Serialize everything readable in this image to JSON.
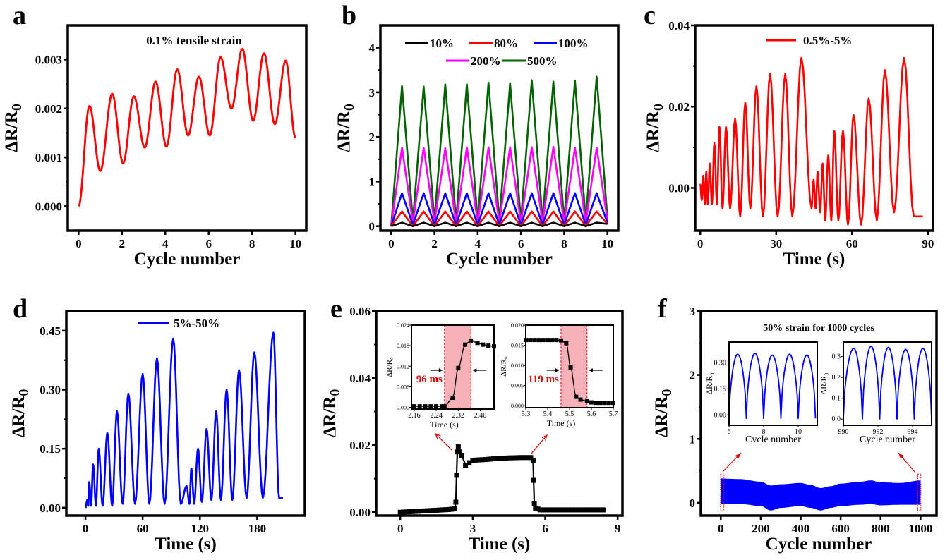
{
  "chart_data": [
    {
      "id": "a",
      "panel_label": "a",
      "type": "line",
      "title": "",
      "annotation": "0.1% tensile strain",
      "xlabel": "Cycle number",
      "ylabel": "ΔR/R0",
      "xlim": [
        -0.5,
        10.5
      ],
      "ylim": [
        -0.0005,
        0.0037
      ],
      "xticks": [
        0,
        2,
        4,
        6,
        8,
        10
      ],
      "xtick_labels": [
        "0",
        "2",
        "4",
        "6",
        "8",
        "10"
      ],
      "yticks": [
        0.0,
        0.001,
        0.002,
        0.003
      ],
      "ytick_labels": [
        "0.000",
        "0.001",
        "0.002",
        "0.003"
      ],
      "legend": null,
      "series": [
        {
          "name": "0.1% tensile strain",
          "color": "#ff0000",
          "x": [
            0,
            0.5,
            1.0,
            1.55,
            2.05,
            2.55,
            3.05,
            3.55,
            4.05,
            4.55,
            5.05,
            5.55,
            6.05,
            6.55,
            7.05,
            7.55,
            8.05,
            8.55,
            9.05,
            9.55,
            10.0
          ],
          "y": [
            0.0,
            0.00205,
            0.00072,
            0.0023,
            0.00088,
            0.00225,
            0.0012,
            0.00255,
            0.00122,
            0.0028,
            0.00145,
            0.00265,
            0.00145,
            0.00305,
            0.002,
            0.00322,
            0.00175,
            0.00313,
            0.00168,
            0.00298,
            0.0014
          ]
        }
      ]
    },
    {
      "id": "b",
      "panel_label": "b",
      "type": "line",
      "title": "",
      "xlabel": "Cycle number",
      "ylabel": "ΔR/R0",
      "xlim": [
        -0.5,
        10.5
      ],
      "ylim": [
        -0.1,
        4.5
      ],
      "xticks": [
        0,
        2,
        4,
        6,
        8,
        10
      ],
      "xtick_labels": [
        "0",
        "2",
        "4",
        "6",
        "8",
        "10"
      ],
      "yticks": [
        0,
        1,
        2,
        3,
        4
      ],
      "ytick_labels": [
        "0",
        "1",
        "2",
        "3",
        "4"
      ],
      "legend": {
        "placement": "top-center",
        "columns": 3
      },
      "cycles": 10,
      "series": [
        {
          "name": "10%",
          "color": "#000000",
          "peaks": [
            0.08,
            0.08,
            0.08,
            0.08,
            0.08,
            0.08,
            0.08,
            0.08,
            0.08,
            0.08
          ],
          "valley": 0.0
        },
        {
          "name": "80%",
          "color": "#ff0000",
          "peaks": [
            0.33,
            0.33,
            0.33,
            0.33,
            0.33,
            0.33,
            0.33,
            0.33,
            0.33,
            0.33
          ],
          "valley": 0.0
        },
        {
          "name": "100%",
          "color": "#0000ff",
          "peaks": [
            0.74,
            0.74,
            0.74,
            0.74,
            0.74,
            0.74,
            0.74,
            0.74,
            0.74,
            0.74
          ],
          "valley": 0.03
        },
        {
          "name": "200%",
          "color": "#ff00ff",
          "peaks": [
            1.76,
            1.76,
            1.75,
            1.77,
            1.77,
            1.77,
            1.77,
            1.78,
            1.76,
            1.76
          ],
          "valley": 0.08
        },
        {
          "name": "500%",
          "color": "#006400",
          "peaks": [
            3.14,
            3.13,
            3.18,
            3.18,
            3.22,
            3.2,
            3.27,
            3.24,
            3.26,
            3.35
          ],
          "valley": 0.12
        }
      ]
    },
    {
      "id": "c",
      "panel_label": "c",
      "type": "line",
      "title": "",
      "xlabel": "Time (s)",
      "ylabel": "ΔR/R0",
      "xlim": [
        -2,
        92
      ],
      "ylim": [
        -0.0105,
        0.04
      ],
      "xticks": [
        0,
        30,
        60,
        90
      ],
      "xtick_labels": [
        "0",
        "30",
        "60",
        "90"
      ],
      "yticks": [
        0.0,
        0.02,
        0.04
      ],
      "ytick_labels": [
        "0.00",
        "0.02",
        "0.04"
      ],
      "legend": {
        "placement": "top-center"
      },
      "series": [
        {
          "name": "0.5%-5%",
          "color": "#ff0000",
          "x": [
            0,
            0.6,
            1.2,
            1.8,
            2.4,
            3.0,
            3.8,
            4.6,
            5.6,
            6.6,
            7.6,
            8.8,
            10.2,
            11.8,
            13.8,
            15.8,
            17.8,
            19.8,
            22.2,
            24.8,
            27.6,
            30.6,
            33.6,
            36.4,
            40.0,
            44.0,
            44.8,
            45.6,
            46.4,
            47.4,
            48.4,
            49.4,
            50.6,
            51.8,
            53.0,
            54.6,
            56.4,
            58.4,
            60.6,
            63.6,
            66.6,
            69.8,
            73.0,
            76.6,
            80.6,
            84.4,
            88.0
          ],
          "y": [
            0.001,
            -0.003,
            0.003,
            -0.004,
            0.004,
            -0.004,
            0.006,
            -0.004,
            0.011,
            -0.004,
            0.015,
            -0.005,
            0.015,
            -0.005,
            0.017,
            -0.007,
            0.021,
            -0.005,
            0.025,
            -0.007,
            0.028,
            -0.007,
            0.028,
            -0.007,
            0.032,
            -0.005,
            0.002,
            -0.005,
            0.004,
            -0.006,
            0.006,
            -0.008,
            0.008,
            -0.008,
            0.014,
            -0.008,
            0.014,
            -0.009,
            0.018,
            -0.009,
            0.022,
            -0.008,
            0.029,
            -0.006,
            0.032,
            -0.007,
            -0.007
          ]
        }
      ]
    },
    {
      "id": "d",
      "panel_label": "d",
      "type": "line",
      "title": "",
      "xlabel": "Time (s)",
      "ylabel": "ΔR/R0",
      "xlim": [
        -20,
        230
      ],
      "ylim": [
        -0.02,
        0.5
      ],
      "xticks": [
        0,
        60,
        120,
        180
      ],
      "xtick_labels": [
        "0",
        "60",
        "120",
        "180"
      ],
      "yticks": [
        0.0,
        0.15,
        0.3,
        0.45
      ],
      "ytick_labels": [
        "0.00",
        "0.15",
        "0.30",
        "0.45"
      ],
      "legend": {
        "placement": "top-center"
      },
      "series": [
        {
          "name": "5%-50%",
          "color": "#0000ff",
          "peaks_x": [
            2,
            4,
            8,
            14,
            23,
            33,
            45,
            60,
            75,
            92,
            106,
            111,
            118,
            127,
            137,
            148,
            161,
            177,
            197
          ],
          "peaks_y": [
            0.02,
            0.065,
            0.11,
            0.15,
            0.19,
            0.245,
            0.29,
            0.34,
            0.38,
            0.43,
            0.055,
            0.1,
            0.15,
            0.2,
            0.245,
            0.3,
            0.35,
            0.395,
            0.445
          ],
          "valleys_x": [
            0,
            3,
            6,
            11,
            18,
            28,
            39,
            52,
            67,
            83,
            100,
            109,
            114,
            122,
            132,
            142,
            154,
            169,
            186,
            203,
            207
          ],
          "valleys_y": [
            0.0,
            0.005,
            0.005,
            0.005,
            0.005,
            0.005,
            0.01,
            0.01,
            0.01,
            0.01,
            0.01,
            0.01,
            0.01,
            0.015,
            0.02,
            0.02,
            0.02,
            0.025,
            0.025,
            0.025,
            0.025
          ]
        }
      ]
    },
    {
      "id": "e",
      "panel_label": "e",
      "type": "line",
      "title": "",
      "xlabel": "Time (s)",
      "ylabel": "ΔR/R0",
      "xlim": [
        -1,
        9.2
      ],
      "ylim": [
        -0.001,
        0.06
      ],
      "xticks": [
        0,
        3,
        6,
        9
      ],
      "xtick_labels": [
        "0",
        "3",
        "6",
        "9"
      ],
      "yticks": [
        0.0,
        0.02,
        0.04,
        0.06
      ],
      "ytick_labels": [
        "0.00",
        "0.02",
        "0.04",
        "0.06"
      ],
      "legend": null,
      "series": [
        {
          "name": "response",
          "color": "#000000",
          "marker": "square",
          "x": [
            0,
            0.5,
            1.0,
            1.5,
            2.0,
            2.25,
            2.3,
            2.33,
            2.36,
            2.4,
            2.45,
            2.55,
            2.7,
            3.0,
            3.5,
            4.0,
            4.5,
            5.0,
            5.4,
            5.5,
            5.52,
            5.55,
            5.6,
            5.8,
            6.5,
            7.5,
            8.4
          ],
          "y": [
            0.0,
            0.0002,
            0.0004,
            0.0006,
            0.0008,
            0.001,
            0.003,
            0.011,
            0.018,
            0.0195,
            0.018,
            0.017,
            0.014,
            0.0155,
            0.0157,
            0.016,
            0.0162,
            0.0163,
            0.0163,
            0.0155,
            0.0095,
            0.0025,
            0.0012,
            0.0007,
            0.0007,
            0.0007,
            0.0007
          ]
        }
      ],
      "insets": [
        {
          "id": "e-inset-rise",
          "xlabel": "Time (s)",
          "ylabel": "ΔR/R0",
          "xlim": [
            2.15,
            2.45
          ],
          "ylim": [
            -0.0005,
            0.024
          ],
          "xticks": [
            2.16,
            2.24,
            2.32,
            2.4
          ],
          "xtick_labels": [
            "2.16",
            "2.24",
            "2.32",
            "2.40"
          ],
          "yticks": [
            0.0,
            0.006,
            0.012,
            0.018,
            0.024
          ],
          "ytick_labels": [
            "0.000",
            "0.006",
            "0.012",
            "0.018",
            "0.024"
          ],
          "highlight": [
            2.27,
            2.366
          ],
          "highlight_color": "#f6b0b8",
          "annotation": "96 ms",
          "x": [
            2.16,
            2.18,
            2.2,
            2.22,
            2.24,
            2.26,
            2.27,
            2.3,
            2.32,
            2.345,
            2.366,
            2.39,
            2.41,
            2.43,
            2.45
          ],
          "y": [
            0.0003,
            0.0003,
            0.0003,
            0.0003,
            0.0003,
            0.0003,
            0.0003,
            0.0028,
            0.0115,
            0.0183,
            0.0195,
            0.0188,
            0.0183,
            0.018,
            0.0178
          ]
        },
        {
          "id": "e-inset-fall",
          "xlabel": "Time (s)",
          "ylabel": "ΔR/R0",
          "xlim": [
            5.3,
            5.7
          ],
          "ylim": [
            -0.0005,
            0.02
          ],
          "xticks": [
            5.3,
            5.4,
            5.5,
            5.6,
            5.7
          ],
          "xtick_labels": [
            "5.3",
            "5.4",
            "5.5",
            "5.6",
            "5.7"
          ],
          "yticks": [
            0.0,
            0.005,
            0.01,
            0.015,
            0.02
          ],
          "ytick_labels": [
            "0.000",
            "0.005",
            "0.010",
            "0.015",
            "0.020"
          ],
          "highlight": [
            5.461,
            5.58
          ],
          "highlight_color": "#f6b0b8",
          "annotation": "119 ms",
          "x": [
            5.3,
            5.32,
            5.34,
            5.36,
            5.38,
            5.4,
            5.42,
            5.44,
            5.461,
            5.485,
            5.505,
            5.53,
            5.55,
            5.58,
            5.6,
            5.62,
            5.64,
            5.66,
            5.68,
            5.7
          ],
          "y": [
            0.0163,
            0.0163,
            0.0163,
            0.0163,
            0.0163,
            0.0163,
            0.0163,
            0.0163,
            0.0162,
            0.0155,
            0.0095,
            0.0022,
            0.0015,
            0.0011,
            0.0008,
            0.0007,
            0.0007,
            0.0007,
            0.0007,
            0.0007
          ]
        }
      ]
    },
    {
      "id": "f",
      "panel_label": "f",
      "type": "area",
      "title": "",
      "annotation": "50% strain for 1000 cycles",
      "xlabel": "Cycle number",
      "ylabel": "ΔR/R0",
      "xlim": [
        -100,
        1080
      ],
      "ylim": [
        -0.2,
        3.0
      ],
      "xticks": [
        0,
        200,
        400,
        600,
        800,
        1000
      ],
      "xtick_labels": [
        "0",
        "200",
        "400",
        "600",
        "800",
        "1000"
      ],
      "yticks": [
        0,
        1,
        2,
        3
      ],
      "ytick_labels": [
        "0",
        "1",
        "2",
        "3"
      ],
      "legend": null,
      "series": [
        {
          "name": "envelope",
          "color": "#0000ff",
          "x": [
            0,
            100,
            200,
            250,
            300,
            400,
            450,
            500,
            550,
            600,
            700,
            750,
            800,
            900,
            1000
          ],
          "upper": [
            0.38,
            0.37,
            0.33,
            0.27,
            0.29,
            0.31,
            0.28,
            0.23,
            0.26,
            0.3,
            0.33,
            0.35,
            0.32,
            0.31,
            0.35
          ],
          "lower": [
            -0.02,
            -0.02,
            -0.05,
            -0.12,
            -0.08,
            -0.05,
            -0.08,
            -0.12,
            -0.08,
            -0.05,
            -0.03,
            -0.02,
            -0.04,
            -0.03,
            -0.03
          ]
        }
      ],
      "insets": [
        {
          "id": "f-inset-start",
          "xlabel": "Cycle number",
          "ylabel": "ΔR/R0",
          "xlim": [
            6,
            11.1
          ],
          "ylim": [
            -0.06,
            0.42
          ],
          "xticks": [
            6,
            8,
            10
          ],
          "xtick_labels": [
            "6",
            "8",
            "10"
          ],
          "yticks": [
            0.0,
            0.15,
            0.3
          ],
          "ytick_labels": [
            "0.00",
            "0.15",
            "0.30"
          ],
          "cycles_x_peak": [
            6.5,
            7.5,
            8.5,
            9.5,
            10.5
          ],
          "peaks": [
            0.35,
            0.355,
            0.345,
            0.35,
            0.345
          ],
          "valley": -0.02
        },
        {
          "id": "f-inset-end",
          "xlabel": "Cycle number",
          "ylabel": "ΔR/R0",
          "xlim": [
            990,
            995.1
          ],
          "ylim": [
            -0.03,
            0.37
          ],
          "xticks": [
            990,
            992,
            994
          ],
          "xtick_labels": [
            "990",
            "992",
            "994"
          ],
          "yticks": [
            0.0,
            0.1,
            0.2,
            0.3
          ],
          "ytick_labels": [
            "0.0",
            "0.1",
            "0.2",
            "0.3"
          ],
          "cycles_x_peak": [
            990.6,
            991.6,
            992.6,
            993.6,
            994.6
          ],
          "peaks": [
            0.34,
            0.35,
            0.345,
            0.335,
            0.34
          ],
          "valley": 0.0
        }
      ]
    }
  ]
}
